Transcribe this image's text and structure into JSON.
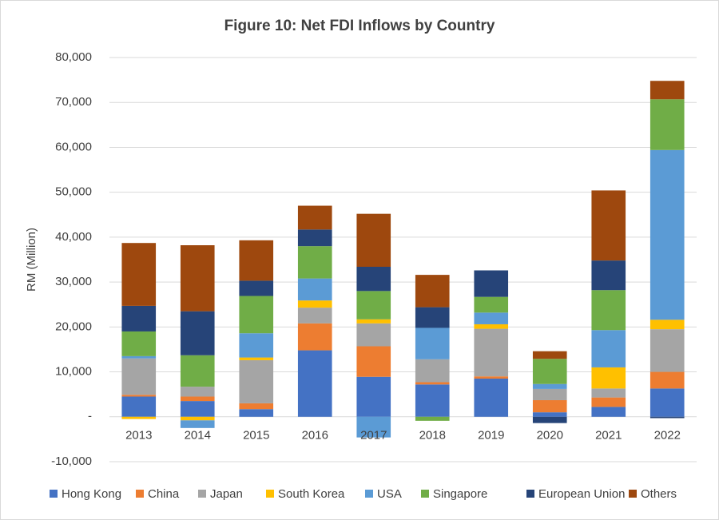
{
  "chart_data": {
    "type": "stacked_bar",
    "title": "Figure 10: Net FDI Inflows by Country",
    "y_label": "RM (Million)",
    "categories": [
      "2013",
      "2014",
      "2015",
      "2016",
      "2017",
      "2018",
      "2019",
      "2020",
      "2021",
      "2022"
    ],
    "series": [
      {
        "name": "Hong Kong",
        "color": "#4472c4",
        "values": [
          4500,
          3500,
          1700,
          14800,
          8900,
          7200,
          8500,
          1000,
          2200,
          6300
        ]
      },
      {
        "name": "China",
        "color": "#ed7d31",
        "values": [
          400,
          1000,
          1300,
          6000,
          6800,
          500,
          500,
          2700,
          2100,
          3700
        ]
      },
      {
        "name": "Japan",
        "color": "#a5a5a5",
        "values": [
          8100,
          2200,
          9600,
          3500,
          5100,
          5100,
          10600,
          2500,
          2000,
          9500
        ]
      },
      {
        "name": "South Korea",
        "color": "#ffc000",
        "values": [
          -500,
          -800,
          600,
          1600,
          900,
          0,
          1000,
          0,
          4700,
          2100
        ]
      },
      {
        "name": "USA",
        "color": "#5b9bd5",
        "values": [
          500,
          -1700,
          5400,
          4900,
          -4600,
          7000,
          2600,
          1100,
          8300,
          37800
        ]
      },
      {
        "name": "Singapore",
        "color": "#70ad47",
        "values": [
          5500,
          7000,
          8300,
          7200,
          6300,
          -900,
          3500,
          5600,
          8900,
          11300
        ]
      },
      {
        "name": "European Union",
        "color": "#264478",
        "values": [
          5700,
          9800,
          3400,
          3700,
          5400,
          4600,
          5900,
          -1400,
          6600,
          -300
        ]
      },
      {
        "name": "Others",
        "color": "#9e480e",
        "values": [
          14000,
          14700,
          9000,
          5300,
          11800,
          7200,
          0,
          1700,
          15600,
          4100
        ]
      }
    ],
    "ylim": [
      -10000,
      80000
    ],
    "yticks": [
      {
        "value": -10000,
        "label": "-10,000"
      },
      {
        "value": 0,
        "label": "-"
      },
      {
        "value": 10000,
        "label": "10,000"
      },
      {
        "value": 20000,
        "label": "20,000"
      },
      {
        "value": 30000,
        "label": "30,000"
      },
      {
        "value": 40000,
        "label": "40,000"
      },
      {
        "value": 50000,
        "label": "50,000"
      },
      {
        "value": 60000,
        "label": "60,000"
      },
      {
        "value": 70000,
        "label": "70,000"
      },
      {
        "value": 80000,
        "label": "80,000"
      }
    ],
    "grid": true
  }
}
